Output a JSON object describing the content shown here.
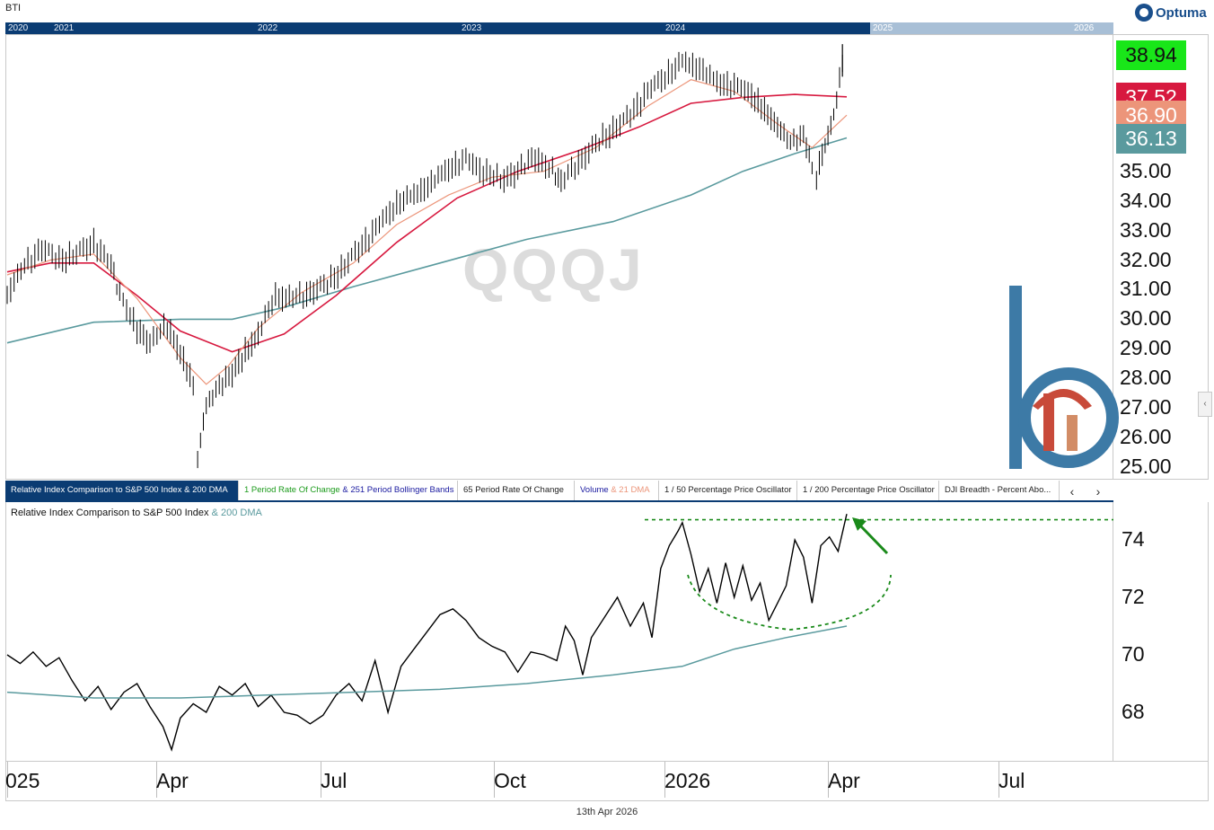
{
  "ticker": "BTI",
  "navigator": {
    "years": [
      "2020",
      "2021",
      "2022",
      "2023",
      "2024",
      "2025",
      "2026"
    ]
  },
  "brand": {
    "name": "Optuma"
  },
  "watermark": "QQQJ",
  "price_badges": [
    {
      "value": "38.94",
      "color": "#19e619"
    },
    {
      "value": "37.52",
      "color": "#d7193f"
    },
    {
      "value": "36.90",
      "color": "#ec957a"
    },
    {
      "value": "36.13",
      "color": "#5a9a9e"
    }
  ],
  "tabs": [
    {
      "label": "Relative Index Comparison to S&P 500 Index & 200 DMA",
      "active": true
    },
    {
      "label_a": "1 Period Rate Of Change",
      "label_b": " & ",
      "label_c": "251 Period Bollinger Bands"
    },
    {
      "label": "65 Period Rate Of Change"
    },
    {
      "label_a": "Volume",
      "label_b": " & 21 DMA"
    },
    {
      "label": "1 / 50 Percentage Price Oscillator"
    },
    {
      "label": "1 / 200 Percentage Price Oscillator"
    },
    {
      "label": "DJI Breadth - Percent Abo..."
    }
  ],
  "tab_nav": {
    "prev": "‹",
    "next": "›"
  },
  "lower_panel": {
    "title_a": "Relative Index Comparison to S&P 500 Index",
    "title_b": " & 200 DMA"
  },
  "footer_date": "13th Apr 2026",
  "colors": {
    "price": "#000000",
    "ma21": "#ec957a",
    "ma50": "#d7193f",
    "ma200": "#5a9a9e",
    "accent": "#0b3c73",
    "annotation": "#1a8a1a"
  },
  "chart_data": [
    {
      "type": "bar",
      "subtype": "ohlc",
      "title": "BTI",
      "ylim": [
        24.5,
        39.5
      ],
      "y_ticks": [
        "25.00",
        "26.00",
        "27.00",
        "28.00",
        "29.00",
        "30.00",
        "31.00",
        "32.00",
        "33.00",
        "34.00",
        "35.00"
      ],
      "x_ticks": [
        "025",
        "Apr",
        "Jul",
        "Oct",
        "2026",
        "Apr",
        "Jul"
      ],
      "series": [
        {
          "name": "Price",
          "points": [
            [
              0,
              30.9
            ],
            [
              8,
              31.8
            ],
            [
              16,
              32.4
            ],
            [
              24,
              32.0
            ],
            [
              32,
              32.2
            ],
            [
              40,
              32.6
            ],
            [
              48,
              31.8
            ],
            [
              52,
              30.8
            ],
            [
              60,
              29.7
            ],
            [
              66,
              29.2
            ],
            [
              74,
              29.8
            ],
            [
              80,
              28.9
            ],
            [
              86,
              27.8
            ],
            [
              88,
              25.3
            ],
            [
              92,
              27.0
            ],
            [
              98,
              27.7
            ],
            [
              104,
              28.2
            ],
            [
              110,
              28.9
            ],
            [
              116,
              29.5
            ],
            [
              124,
              30.8
            ],
            [
              132,
              30.7
            ],
            [
              140,
              30.9
            ],
            [
              148,
              31.2
            ],
            [
              156,
              31.8
            ],
            [
              164,
              32.5
            ],
            [
              172,
              33.2
            ],
            [
              180,
              33.9
            ],
            [
              188,
              34.2
            ],
            [
              196,
              34.6
            ],
            [
              204,
              35.1
            ],
            [
              212,
              35.4
            ],
            [
              220,
              35.0
            ],
            [
              228,
              34.7
            ],
            [
              236,
              35.0
            ],
            [
              244,
              35.5
            ],
            [
              252,
              35.0
            ],
            [
              256,
              34.6
            ],
            [
              264,
              35.3
            ],
            [
              272,
              35.9
            ],
            [
              280,
              36.4
            ],
            [
              288,
              36.9
            ],
            [
              296,
              37.7
            ],
            [
              304,
              38.2
            ],
            [
              312,
              38.7
            ],
            [
              320,
              38.5
            ],
            [
              328,
              38.0
            ],
            [
              336,
              37.9
            ],
            [
              344,
              37.6
            ],
            [
              350,
              37.1
            ],
            [
              356,
              36.5
            ],
            [
              362,
              35.9
            ],
            [
              368,
              36.2
            ],
            [
              372,
              35.1
            ],
            [
              374,
              34.9
            ],
            [
              378,
              35.9
            ],
            [
              382,
              36.8
            ],
            [
              386,
              38.7
            ],
            [
              388,
              38.94
            ]
          ]
        },
        {
          "name": "21 DMA",
          "points": [
            [
              0,
              31.5
            ],
            [
              20,
              32.0
            ],
            [
              40,
              32.2
            ],
            [
              60,
              30.7
            ],
            [
              80,
              28.7
            ],
            [
              92,
              27.8
            ],
            [
              102,
              28.4
            ],
            [
              116,
              29.7
            ],
            [
              136,
              30.9
            ],
            [
              160,
              31.9
            ],
            [
              180,
              33.2
            ],
            [
              204,
              34.2
            ],
            [
              224,
              34.8
            ],
            [
              248,
              35.0
            ],
            [
              272,
              35.8
            ],
            [
              296,
              37.2
            ],
            [
              316,
              38.1
            ],
            [
              336,
              37.7
            ],
            [
              356,
              36.6
            ],
            [
              372,
              35.8
            ],
            [
              388,
              36.9
            ]
          ]
        },
        {
          "name": "50 DMA",
          "points": [
            [
              0,
              31.6
            ],
            [
              20,
              31.9
            ],
            [
              40,
              31.9
            ],
            [
              60,
              30.8
            ],
            [
              80,
              29.6
            ],
            [
              104,
              28.9
            ],
            [
              128,
              29.5
            ],
            [
              152,
              30.8
            ],
            [
              180,
              32.6
            ],
            [
              208,
              34.1
            ],
            [
              236,
              35.0
            ],
            [
              264,
              35.7
            ],
            [
              292,
              36.5
            ],
            [
              316,
              37.3
            ],
            [
              340,
              37.5
            ],
            [
              364,
              37.6
            ],
            [
              388,
              37.52
            ]
          ]
        },
        {
          "name": "200 DMA",
          "points": [
            [
              0,
              29.2
            ],
            [
              40,
              29.9
            ],
            [
              80,
              30.0
            ],
            [
              104,
              30.0
            ],
            [
              128,
              30.4
            ],
            [
              160,
              31.1
            ],
            [
              200,
              31.9
            ],
            [
              240,
              32.7
            ],
            [
              280,
              33.3
            ],
            [
              316,
              34.2
            ],
            [
              340,
              35.0
            ],
            [
              364,
              35.6
            ],
            [
              388,
              36.13
            ]
          ]
        }
      ]
    },
    {
      "type": "line",
      "title": "Relative Index Comparison to S&P 500 Index & 200 DMA",
      "ylim": [
        66.2,
        75.6
      ],
      "y_ticks": [
        "68",
        "70",
        "72",
        "74"
      ],
      "series": [
        {
          "name": "Relative Index",
          "points": [
            [
              0,
              70.0
            ],
            [
              6,
              69.7
            ],
            [
              12,
              70.1
            ],
            [
              18,
              69.6
            ],
            [
              24,
              69.9
            ],
            [
              30,
              69.1
            ],
            [
              36,
              68.4
            ],
            [
              42,
              68.9
            ],
            [
              48,
              68.1
            ],
            [
              54,
              68.7
            ],
            [
              60,
              69.0
            ],
            [
              66,
              68.2
            ],
            [
              72,
              67.5
            ],
            [
              76,
              66.7
            ],
            [
              80,
              67.8
            ],
            [
              86,
              68.3
            ],
            [
              92,
              68.0
            ],
            [
              98,
              68.9
            ],
            [
              104,
              68.6
            ],
            [
              110,
              69.0
            ],
            [
              116,
              68.2
            ],
            [
              122,
              68.6
            ],
            [
              128,
              68.0
            ],
            [
              134,
              67.9
            ],
            [
              140,
              67.6
            ],
            [
              146,
              67.9
            ],
            [
              152,
              68.6
            ],
            [
              158,
              69.0
            ],
            [
              164,
              68.4
            ],
            [
              170,
              69.8
            ],
            [
              176,
              68.0
            ],
            [
              182,
              69.6
            ],
            [
              188,
              70.2
            ],
            [
              194,
              70.8
            ],
            [
              200,
              71.4
            ],
            [
              206,
              71.6
            ],
            [
              212,
              71.2
            ],
            [
              218,
              70.6
            ],
            [
              224,
              70.3
            ],
            [
              230,
              70.1
            ],
            [
              236,
              69.4
            ],
            [
              242,
              70.1
            ],
            [
              248,
              70.0
            ],
            [
              254,
              69.8
            ],
            [
              258,
              71.0
            ],
            [
              262,
              70.5
            ],
            [
              266,
              69.3
            ],
            [
              270,
              70.6
            ],
            [
              276,
              71.3
            ],
            [
              282,
              72.0
            ],
            [
              288,
              71.0
            ],
            [
              294,
              71.8
            ],
            [
              298,
              70.6
            ],
            [
              302,
              73.0
            ],
            [
              306,
              73.8
            ],
            [
              310,
              74.3
            ],
            [
              312,
              74.6
            ],
            [
              316,
              73.5
            ],
            [
              320,
              72.2
            ],
            [
              324,
              73.0
            ],
            [
              328,
              71.8
            ],
            [
              332,
              73.2
            ],
            [
              336,
              72.0
            ],
            [
              340,
              73.1
            ],
            [
              344,
              71.9
            ],
            [
              348,
              72.5
            ],
            [
              352,
              71.2
            ],
            [
              356,
              71.8
            ],
            [
              360,
              72.4
            ],
            [
              364,
              74.0
            ],
            [
              368,
              73.4
            ],
            [
              372,
              71.8
            ],
            [
              376,
              73.8
            ],
            [
              380,
              74.1
            ],
            [
              384,
              73.6
            ],
            [
              388,
              74.9
            ]
          ]
        },
        {
          "name": "200 DMA",
          "points": [
            [
              0,
              68.7
            ],
            [
              40,
              68.5
            ],
            [
              80,
              68.5
            ],
            [
              120,
              68.6
            ],
            [
              160,
              68.7
            ],
            [
              200,
              68.8
            ],
            [
              240,
              69.0
            ],
            [
              280,
              69.3
            ],
            [
              312,
              69.6
            ],
            [
              336,
              70.2
            ],
            [
              360,
              70.6
            ],
            [
              388,
              71.0
            ]
          ]
        }
      ]
    }
  ]
}
